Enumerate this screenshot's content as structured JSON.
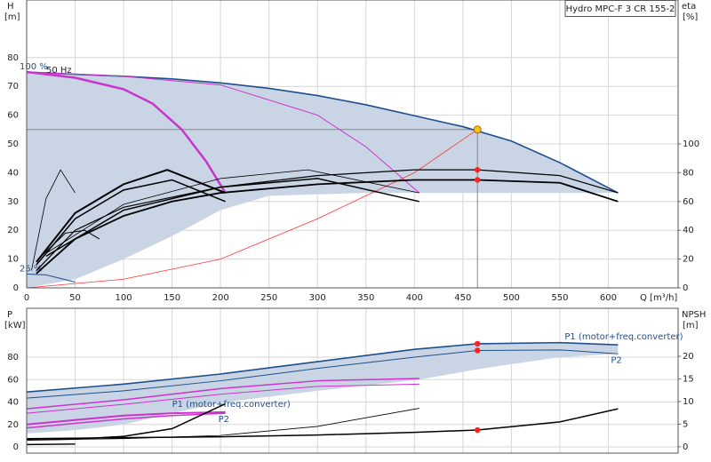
{
  "chart_data": [
    {
      "type": "line",
      "title": "Hydro MPC-F 3 CR 155-2",
      "annotations": [
        "50 Hz"
      ],
      "ylabel": "H",
      "yunit": "[m]",
      "y2label": "eta",
      "y2unit": "[%]",
      "xlabel": "Q [m³/h]",
      "xlim": [
        0,
        672
      ],
      "ylim": [
        0,
        100
      ],
      "y2lim": [
        0,
        200
      ],
      "xticks": [
        0,
        50,
        100,
        150,
        200,
        250,
        300,
        350,
        400,
        450,
        500,
        550,
        600
      ],
      "yticks": [
        0,
        10,
        20,
        30,
        40,
        50,
        60,
        70,
        80
      ],
      "y2ticks": [
        0,
        20,
        40,
        60,
        80,
        100
      ],
      "xtick_labels": true,
      "grid": true,
      "series_label": "start",
      "duty_guides": true,
      "envelope": {
        "color": "#c9d5e4",
        "x": [
          610,
          480,
          350,
          250,
          200,
          150,
          100,
          50,
          0
        ],
        "lower": [
          33,
          33,
          33,
          32,
          27,
          18,
          10,
          3,
          0
        ]
      },
      "series": [
        {
          "name": "100 %",
          "color": "#1f4e8c",
          "width": 1.6,
          "x": [
            0,
            50,
            100,
            150,
            200,
            250,
            300,
            350,
            400,
            450,
            500,
            550,
            610
          ],
          "values": [
            75,
            74.2,
            73.5,
            72.6,
            71.2,
            69.3,
            66.8,
            63.6,
            59.8,
            56,
            51,
            43.5,
            33
          ]
        },
        {
          "color": "#cc33cc",
          "width": 2.5,
          "x": [
            0,
            50,
            100,
            130,
            160,
            185,
            205
          ],
          "values": [
            75,
            73,
            69,
            64,
            55,
            44,
            33
          ]
        },
        {
          "color": "#cc33cc",
          "width": 1,
          "x": [
            0,
            100,
            200,
            300,
            350,
            405
          ],
          "values": [
            75,
            73.5,
            70.5,
            60,
            49,
            33
          ]
        },
        {
          "name": "25 %",
          "color": "#1f4e8c",
          "width": 1,
          "x": [
            0,
            20,
            50
          ],
          "values": [
            4.8,
            4.5,
            2
          ]
        },
        {
          "color": "#ff3333",
          "width": 0.8,
          "x": [
            0,
            100,
            200,
            300,
            400,
            465
          ],
          "values": [
            0,
            3,
            10,
            24,
            40,
            55
          ]
        },
        {
          "color": "#000000",
          "width": 1.8,
          "axis": "y2",
          "x": [
            10,
            50,
            100,
            150,
            200,
            300,
            400,
            465,
            550,
            610
          ],
          "values": [
            10,
            34,
            50,
            60,
            66,
            72,
            75,
            75,
            73,
            60
          ]
        },
        {
          "color": "#000000",
          "width": 1.2,
          "axis": "y2",
          "x": [
            10,
            50,
            100,
            200,
            300,
            400,
            465,
            550,
            610
          ],
          "values": [
            12,
            40,
            56,
            70,
            78,
            82,
            82,
            78,
            66
          ]
        },
        {
          "color": "#000000",
          "width": 1.5,
          "axis": "y2",
          "x": [
            20,
            100,
            200,
            300,
            405
          ],
          "values": [
            22,
            54,
            70,
            76,
            60
          ]
        },
        {
          "color": "#000000",
          "width": 0.8,
          "axis": "y2",
          "x": [
            20,
            100,
            200,
            290,
            405
          ],
          "values": [
            24,
            58,
            76,
            82,
            66
          ]
        },
        {
          "color": "#000000",
          "width": 2,
          "axis": "y2",
          "x": [
            10,
            50,
            100,
            145,
            205
          ],
          "values": [
            18,
            52,
            72,
            82,
            66
          ]
        },
        {
          "color": "#000000",
          "width": 1.5,
          "axis": "y2",
          "x": [
            10,
            50,
            100,
            150,
            205
          ],
          "values": [
            16,
            48,
            68,
            75,
            60
          ]
        },
        {
          "color": "#000000",
          "width": 0.8,
          "axis": "y2",
          "x": [
            5,
            20,
            35,
            50
          ],
          "values": [
            12,
            62,
            82,
            66
          ]
        },
        {
          "color": "#000000",
          "width": 1,
          "axis": "y2",
          "x": [
            15,
            40,
            60,
            75
          ],
          "values": [
            22,
            38,
            40,
            34
          ]
        }
      ],
      "points": [
        {
          "x": 465,
          "y": 55,
          "color": "#f5c518"
        },
        {
          "x": 465,
          "y": 82,
          "axis": "y2",
          "color": "#ff2020"
        },
        {
          "x": 465,
          "y": 75,
          "axis": "y2",
          "color": "#ff2020"
        }
      ]
    },
    {
      "type": "line",
      "ylabel": "P",
      "yunit": "[kW]",
      "y2label": "NPSH",
      "y2unit": "[m]",
      "xlim": [
        0,
        672
      ],
      "ylim": [
        -5.5,
        123.6
      ],
      "y2lim": [
        -1.4,
        30.6
      ],
      "xticks": [
        0,
        50,
        100,
        150,
        200,
        250,
        300,
        350,
        400,
        450,
        500,
        550,
        600
      ],
      "yticks": [
        0,
        20,
        40,
        60,
        80
      ],
      "y2ticks": [
        0,
        5,
        10,
        15,
        20
      ],
      "xtick_labels": false,
      "grid": true,
      "series_label": "end",
      "envelope": {
        "color": "#c9d5e4",
        "x": [
          610,
          550,
          470,
          405,
          300,
          205,
          150,
          100,
          50,
          0
        ],
        "lower": [
          83,
          80,
          70,
          60,
          50,
          40,
          30,
          20,
          15,
          12
        ]
      },
      "series": [
        {
          "name": "P1 (motor+freq.converter)",
          "color": "#1f4e8c",
          "width": 1.6,
          "x": [
            0,
            100,
            200,
            300,
            400,
            465,
            550,
            610
          ],
          "values": [
            49,
            56,
            65,
            76,
            87,
            92,
            93,
            91
          ]
        },
        {
          "name": "P2",
          "color": "#1f4e8c",
          "width": 1,
          "x": [
            0,
            100,
            200,
            300,
            400,
            465,
            550,
            610
          ],
          "values": [
            43.5,
            50,
            59,
            70,
            80,
            86,
            86.5,
            83
          ]
        },
        {
          "color": "#cc33cc",
          "width": 1.5,
          "x": [
            0,
            100,
            200,
            300,
            405
          ],
          "values": [
            34,
            42,
            52,
            59,
            61
          ]
        },
        {
          "color": "#cc33cc",
          "width": 1,
          "x": [
            0,
            100,
            200,
            300,
            405
          ],
          "values": [
            30,
            38,
            47,
            54,
            56
          ]
        },
        {
          "name": "P1 (motor+freq.converter)",
          "color": "#cc33cc",
          "width": 2,
          "x": [
            0,
            50,
            100,
            150,
            205
          ],
          "values": [
            20,
            24,
            28,
            30,
            31
          ]
        },
        {
          "name": "P2",
          "color": "#cc33cc",
          "width": 1.5,
          "x": [
            0,
            50,
            100,
            150,
            205
          ],
          "values": [
            17,
            21,
            25,
            28,
            30
          ]
        },
        {
          "color": "#000000",
          "width": 1.5,
          "axis": "y2",
          "x": [
            0,
            100,
            200,
            300,
            400,
            465,
            550,
            610
          ],
          "values": [
            1.8,
            2,
            2.2,
            2.6,
            3.2,
            3.7,
            5.5,
            8.4
          ]
        },
        {
          "color": "#000000",
          "width": 0.8,
          "axis": "y2",
          "x": [
            0,
            100,
            200,
            300,
            405
          ],
          "values": [
            1.5,
            1.8,
            2.5,
            4.5,
            8.5
          ]
        },
        {
          "color": "#000000",
          "width": 1.5,
          "axis": "y2",
          "x": [
            0,
            50,
            100,
            150,
            205
          ],
          "values": [
            1.5,
            1.7,
            2.3,
            4,
            9.5
          ]
        },
        {
          "color": "#000000",
          "width": 1.5,
          "axis": "y2",
          "x": [
            0,
            50
          ],
          "values": [
            0.5,
            0.6
          ]
        }
      ],
      "points": [
        {
          "x": 465,
          "y": 92,
          "color": "#ff2020"
        },
        {
          "x": 465,
          "y": 86,
          "color": "#ff2020"
        },
        {
          "x": 465,
          "y": 3.7,
          "axis": "y2",
          "color": "#ff2020"
        }
      ]
    }
  ]
}
